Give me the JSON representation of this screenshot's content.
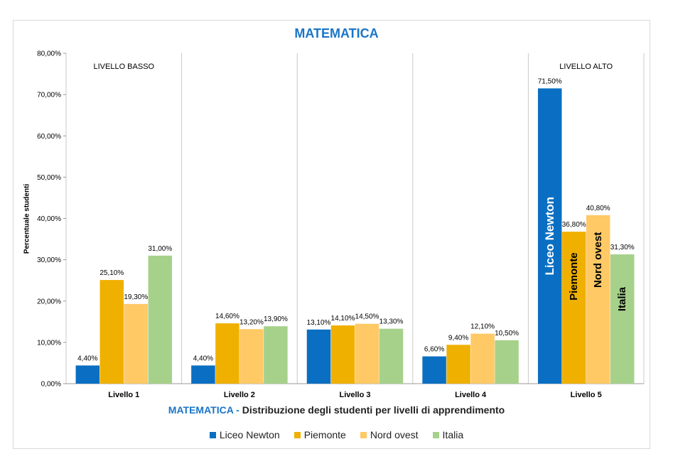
{
  "chart_data": {
    "type": "bar",
    "title": "MATEMATICA",
    "xlabel_accent": "MATEMATICA -",
    "xlabel_rest": " Distribuzione degli studenti per livelli di apprendimento",
    "ylabel": "Percentuale  studenti",
    "ylim": [
      0,
      80
    ],
    "yticks": [
      "0,00%",
      "10,00%",
      "20,00%",
      "30,00%",
      "40,00%",
      "50,00%",
      "60,00%",
      "70,00%",
      "80,00%"
    ],
    "categories": [
      "Livello 1",
      "Livello 2",
      "Livello 3",
      "Livello 4",
      "Livello 5"
    ],
    "series": [
      {
        "name": "Liceo Newton",
        "color": "#0a6fc2",
        "values": [
          4.4,
          4.4,
          13.1,
          6.6,
          71.5
        ],
        "labels": [
          "4,40%",
          "4,40%",
          "13,10%",
          "6,60%",
          "71,50%"
        ]
      },
      {
        "name": "Piemonte",
        "color": "#f0b000",
        "values": [
          25.1,
          14.6,
          14.1,
          9.4,
          36.8
        ],
        "labels": [
          "25,10%",
          "14,60%",
          "14,10%",
          "9,40%",
          "36,80%"
        ]
      },
      {
        "name": "Nord ovest",
        "color": "#ffc966",
        "values": [
          19.3,
          13.2,
          14.5,
          12.1,
          40.8
        ],
        "labels": [
          "19,30%",
          "13,20%",
          "14,50%",
          "12,10%",
          "40,80%"
        ]
      },
      {
        "name": "Italia",
        "color": "#a6d18a",
        "values": [
          31.0,
          13.9,
          13.3,
          10.5,
          31.3
        ],
        "labels": [
          "31,00%",
          "13,90%",
          "13,30%",
          "10,50%",
          "31,30%"
        ]
      }
    ],
    "annotations": [
      {
        "text": "LIVELLO BASSO",
        "category": 0
      },
      {
        "text": "LIVELLO ALTO",
        "category": 4
      }
    ],
    "legend_position": "bottom",
    "grid": false
  }
}
